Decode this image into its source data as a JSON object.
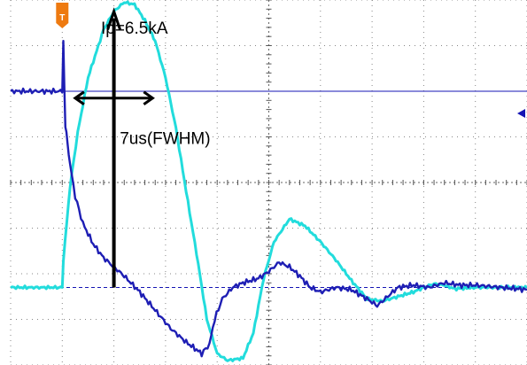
{
  "chart_data": {
    "type": "line",
    "title": "",
    "xlabel": "",
    "ylabel": "",
    "grid": true,
    "grid_divisions": {
      "x": 10,
      "y": 8
    },
    "xlim": [
      -1,
      9
    ],
    "ylim": [
      -4,
      4
    ],
    "colors": {
      "current": "#22dcdc",
      "voltage": "#1e1eb4",
      "markers": "#1414b4",
      "annotation": "#000000",
      "trigger": "#ee7a10",
      "grid": "#555555"
    },
    "series": [
      {
        "name": "",
        "color": "#22dcdc",
        "x": [
          -1.0,
          0.0,
          0.02,
          0.15,
          0.3,
          0.5,
          0.8,
          1.0,
          1.2,
          1.4,
          1.6,
          1.8,
          2.0,
          2.2,
          2.4,
          2.6,
          2.8,
          3.0,
          3.2,
          3.5,
          3.7,
          3.9,
          4.1,
          4.4,
          4.7,
          5.0,
          5.3,
          5.6,
          5.9,
          6.2,
          6.5,
          6.8,
          7.0,
          7.2,
          7.4,
          7.6,
          8.0,
          8.5,
          9.0
        ],
        "y": [
          -2.3,
          -2.3,
          -1.7,
          -0.1,
          1.1,
          2.3,
          3.35,
          3.75,
          3.95,
          3.9,
          3.55,
          3.1,
          2.3,
          1.2,
          -0.2,
          -1.55,
          -3.0,
          -3.75,
          -3.9,
          -3.85,
          -3.3,
          -2.1,
          -1.3,
          -0.8,
          -0.95,
          -1.3,
          -1.7,
          -2.15,
          -2.55,
          -2.6,
          -2.5,
          -2.4,
          -2.3,
          -2.22,
          -2.25,
          -2.33,
          -2.3,
          -2.3,
          -2.3
        ]
      },
      {
        "name": "",
        "color": "#1e1eb4",
        "x": [
          -1.0,
          0.0,
          0.02,
          0.06,
          0.1,
          0.15,
          0.25,
          0.4,
          0.6,
          0.8,
          1.0,
          1.2,
          1.5,
          1.8,
          2.1,
          2.4,
          2.7,
          2.85,
          2.95,
          3.1,
          3.3,
          3.5,
          3.8,
          4.0,
          4.2,
          4.4,
          4.6,
          4.8,
          5.0,
          5.3,
          5.6,
          5.9,
          6.1,
          6.3,
          6.5,
          6.8,
          7.1,
          7.4,
          7.7,
          8.0,
          8.5,
          9.0
        ],
        "y": [
          2.0,
          2.0,
          3.1,
          1.2,
          0.9,
          0.4,
          -0.3,
          -0.9,
          -1.35,
          -1.65,
          -1.85,
          -2.05,
          -2.4,
          -2.8,
          -3.2,
          -3.5,
          -3.75,
          -3.55,
          -3.0,
          -2.55,
          -2.3,
          -2.2,
          -2.1,
          -1.95,
          -1.75,
          -1.85,
          -2.05,
          -2.3,
          -2.4,
          -2.3,
          -2.35,
          -2.55,
          -2.7,
          -2.5,
          -2.3,
          -2.25,
          -2.3,
          -2.2,
          -2.25,
          -2.25,
          -2.3,
          -2.35
        ]
      }
    ],
    "reference_markers": [
      {
        "axis": "y",
        "value": 2.0,
        "color": "#1414b4"
      },
      {
        "axis": "y",
        "value": -2.3,
        "color": "#1414b4"
      }
    ],
    "annotations": [
      {
        "text": "Ip=6.5kA",
        "at": {
          "x": 1.95,
          "y": 3.4
        }
      },
      {
        "text": "7us(FWHM)",
        "at": {
          "x": 3.0,
          "y": 0.65
        }
      }
    ],
    "trigger": {
      "label": "T",
      "x": 0.0
    }
  }
}
